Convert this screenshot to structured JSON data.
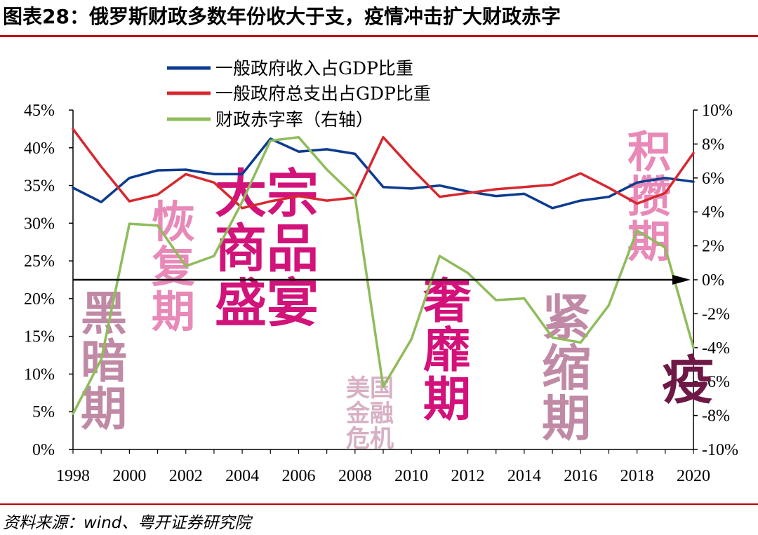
{
  "title": "图表28：俄罗斯财政多数年份收大于支，疫情冲击扩大财政赤字",
  "source": "资料来源：wind、粤开证券研究院",
  "chart_data": {
    "type": "line",
    "x": [
      1998,
      1999,
      2000,
      2001,
      2002,
      2003,
      2004,
      2005,
      2006,
      2007,
      2008,
      2009,
      2010,
      2011,
      2012,
      2013,
      2014,
      2015,
      2016,
      2017,
      2018,
      2019,
      2020
    ],
    "x_tick_labels": [
      "1998",
      "2000",
      "2002",
      "2004",
      "2006",
      "2008",
      "2010",
      "2012",
      "2014",
      "2016",
      "2018",
      "2020"
    ],
    "y_left_range": [
      0,
      45
    ],
    "y_left_tick_labels": [
      "45%",
      "40%",
      "35%",
      "30%",
      "25%",
      "20%",
      "15%",
      "10%",
      "5%",
      "0%"
    ],
    "y_right_range": [
      -10,
      10
    ],
    "y_right_tick_labels": [
      "10%",
      "8%",
      "6%",
      "4%",
      "2%",
      "0%",
      "-2%",
      "-4%",
      "-6%",
      "-8%",
      "-10%"
    ],
    "series": [
      {
        "name": "一般政府收入占GDP比重",
        "axis": "left",
        "color": "#0c3b8f",
        "values": [
          34.7,
          32.8,
          36.0,
          37.0,
          37.1,
          36.5,
          36.5,
          41.2,
          39.5,
          39.8,
          39.2,
          34.8,
          34.6,
          35.0,
          34.2,
          33.6,
          33.9,
          32.0,
          33.0,
          33.5,
          35.4,
          36.0,
          35.5
        ]
      },
      {
        "name": "一般政府总支出占GDP比重",
        "axis": "left",
        "color": "#d7282f",
        "values": [
          42.5,
          37.5,
          32.9,
          33.8,
          36.5,
          35.4,
          32.0,
          32.9,
          33.6,
          33.0,
          33.4,
          41.4,
          37.3,
          33.5,
          34.0,
          34.5,
          34.8,
          35.1,
          36.6,
          34.7,
          32.6,
          34.0,
          39.3
        ]
      },
      {
        "name": "财政赤字率（右轴）",
        "axis": "right",
        "color": "#8fbc5b",
        "values": [
          -7.9,
          -4.7,
          3.3,
          3.2,
          0.8,
          1.4,
          4.6,
          8.2,
          8.4,
          6.5,
          4.9,
          -6.3,
          -3.5,
          1.4,
          0.4,
          -1.2,
          -1.1,
          -3.4,
          -3.7,
          -1.5,
          2.9,
          1.9,
          -4.0
        ]
      }
    ],
    "zero_line": {
      "axis": "right",
      "value": 0,
      "arrow": true
    },
    "annotations": [
      {
        "text": "黑暗期",
        "color": "#c08aa6"
      },
      {
        "text": "恢复期",
        "color": "#e889b8"
      },
      {
        "text": "大宗商品盛宴",
        "color": "#d1137a"
      },
      {
        "text": "美国金融危机",
        "color": "#d7b0c4"
      },
      {
        "text": "奢靡期",
        "color": "#d4117a"
      },
      {
        "text": "紧缩期",
        "color": "#c08aa6"
      },
      {
        "text": "积攒期",
        "color": "#e889b8"
      },
      {
        "text": "疫",
        "color": "#6e1846"
      }
    ]
  }
}
